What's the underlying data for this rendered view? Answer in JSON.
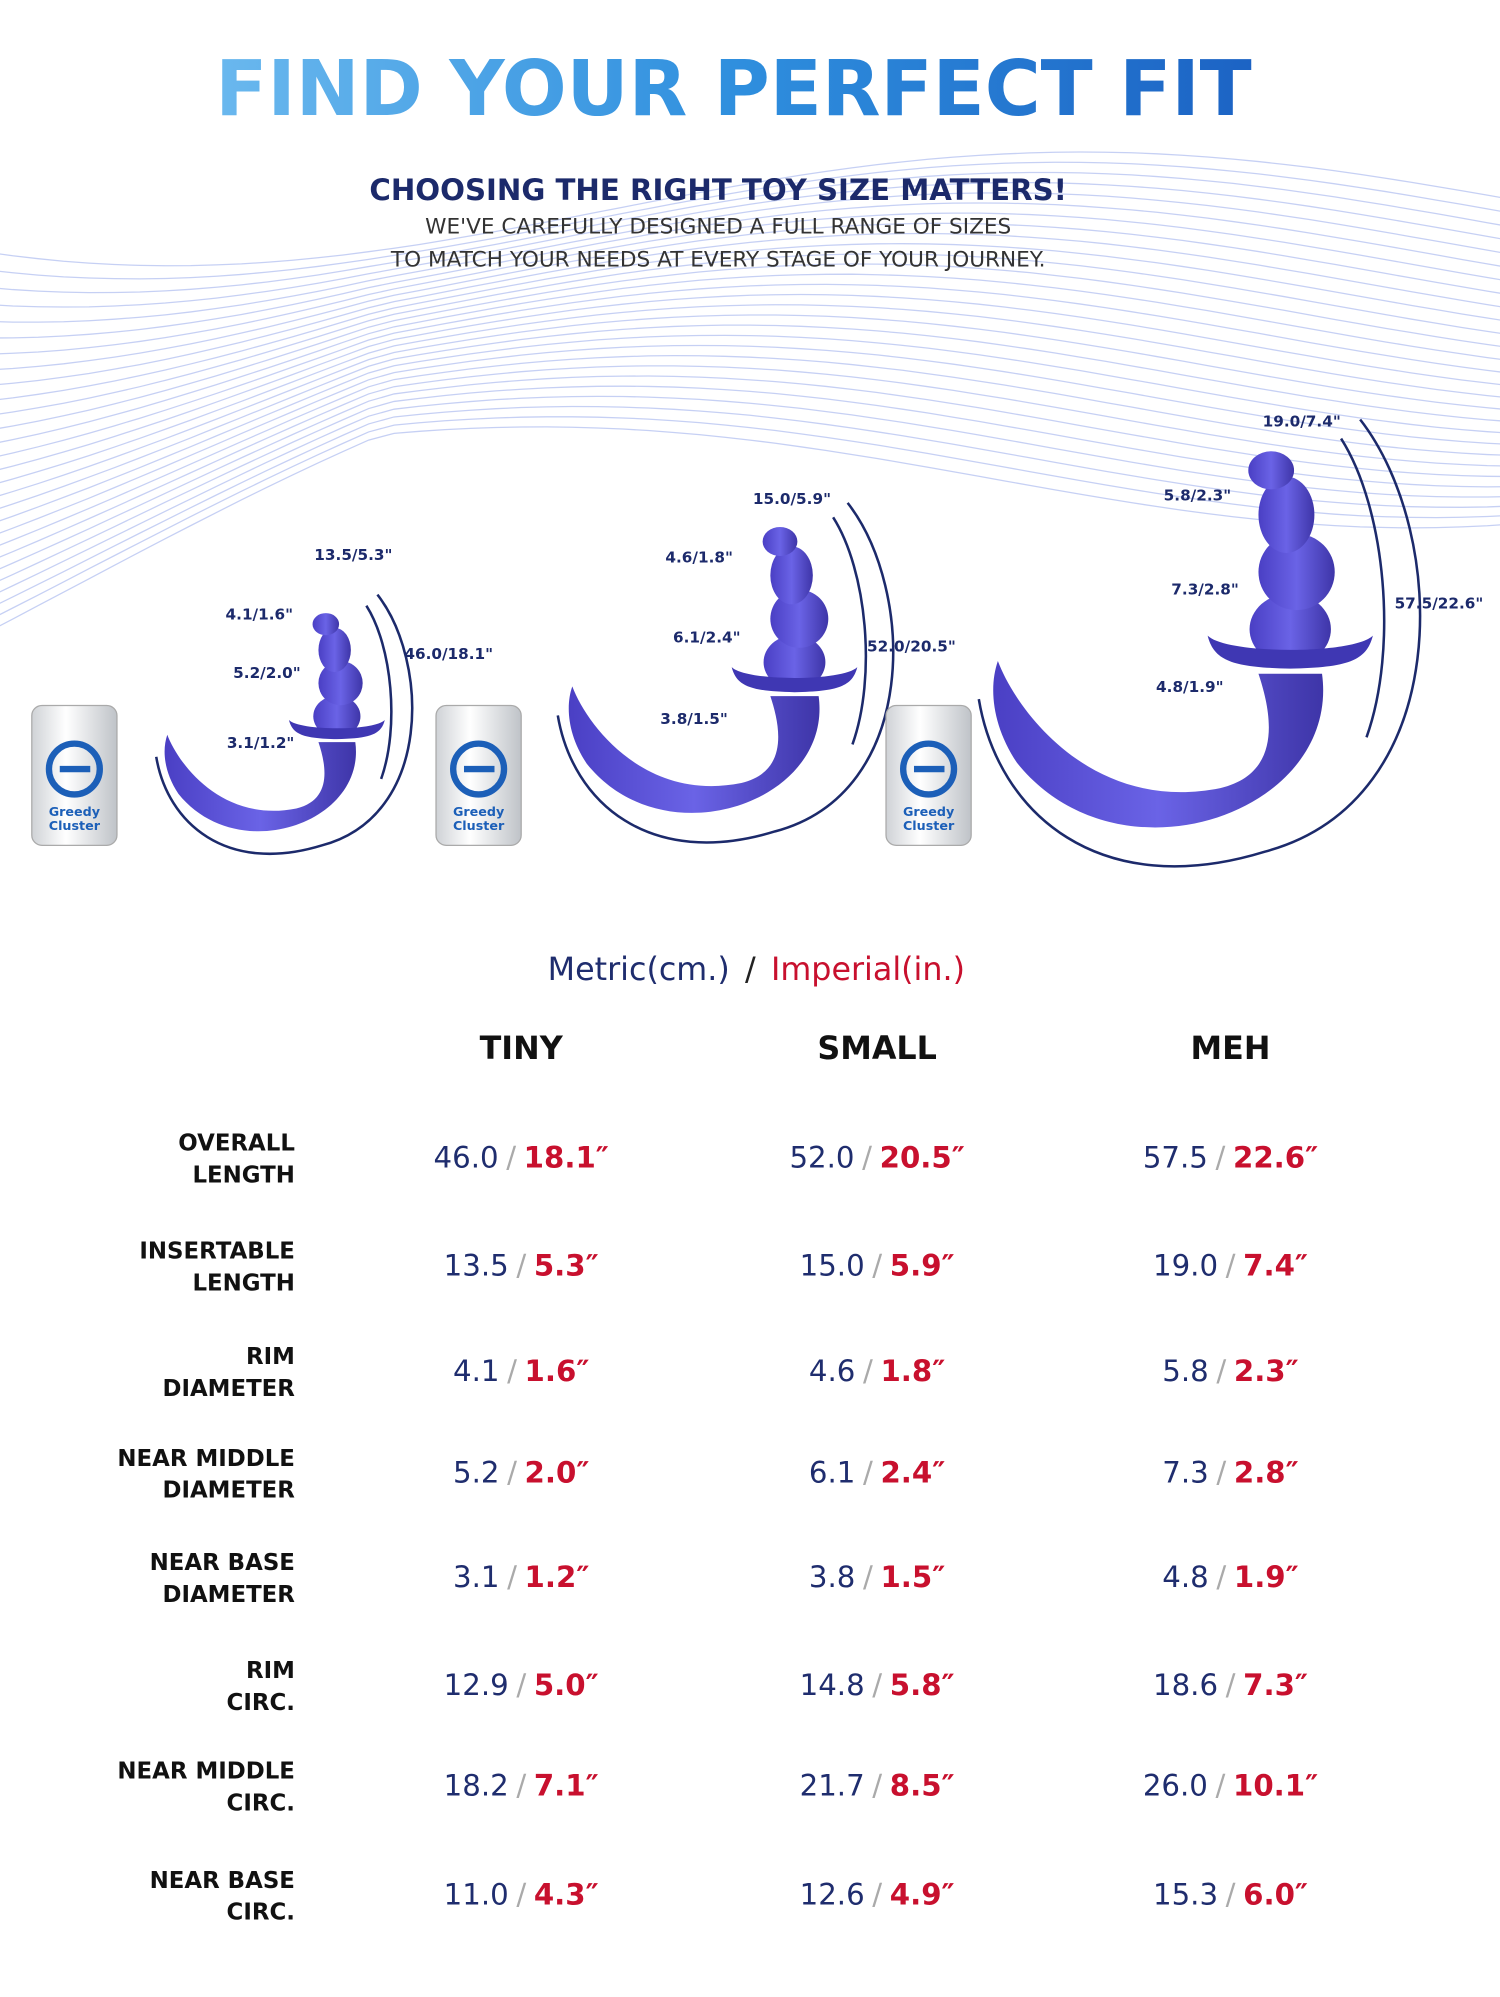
{
  "header": {
    "title": "FIND YOUR PERFECT FIT",
    "subtitle": "CHOOSING THE RIGHT TOY SIZE MATTERS!",
    "lines": [
      "WE'VE CAREFULLY DESIGNED A FULL RANGE OF SIZES",
      "TO MATCH YOUR NEEDS AT EVERY STAGE OF YOUR JOURNEY."
    ]
  },
  "products": [
    {
      "insertable": "13.5/5.3\"",
      "rim": "4.1/1.6\"",
      "middle": "5.2/2.0\"",
      "base": "3.1/1.2\"",
      "overall": "46.0/18.1\""
    },
    {
      "insertable": "15.0/5.9\"",
      "rim": "4.6/1.8\"",
      "middle": "6.1/2.4\"",
      "base": "3.8/1.5\"",
      "overall": "52.0/20.5\""
    },
    {
      "insertable": "19.0/7.4\"",
      "rim": "5.8/2.3\"",
      "middle": "7.3/2.8\"",
      "base": "4.8/1.9\"",
      "overall": "57.5/22.6\""
    }
  ],
  "can_label": [
    "Greedy",
    "Cluster"
  ],
  "table": {
    "legend": {
      "metric": "Metric(cm.)",
      "separator": "/",
      "imperial": "Imperial(in.)"
    },
    "columns": [
      "TINY",
      "SMALL",
      "MEH"
    ],
    "separator": "/",
    "rows": [
      {
        "label": [
          "OVERALL",
          "LENGTH"
        ],
        "cells": [
          [
            "46.0",
            "18.1″"
          ],
          [
            "52.0",
            "20.5″"
          ],
          [
            "57.5",
            "22.6″"
          ]
        ]
      },
      {
        "label": [
          "INSERTABLE",
          "LENGTH"
        ],
        "cells": [
          [
            "13.5",
            "5.3″"
          ],
          [
            "15.0",
            "5.9″"
          ],
          [
            "19.0",
            "7.4″"
          ]
        ]
      },
      {
        "label": [
          "RIM",
          "DIAMETER"
        ],
        "cells": [
          [
            "4.1",
            "1.6″"
          ],
          [
            "4.6",
            "1.8″"
          ],
          [
            "5.8",
            "2.3″"
          ]
        ]
      },
      {
        "label": [
          "NEAR MIDDLE",
          "DIAMETER"
        ],
        "cells": [
          [
            "5.2",
            "2.0″"
          ],
          [
            "6.1",
            "2.4″"
          ],
          [
            "7.3",
            "2.8″"
          ]
        ]
      },
      {
        "label": [
          "NEAR BASE",
          "DIAMETER"
        ],
        "cells": [
          [
            "3.1",
            "1.2″"
          ],
          [
            "3.8",
            "1.5″"
          ],
          [
            "4.8",
            "1.9″"
          ]
        ]
      },
      {
        "label": [
          "RIM",
          "CIRC."
        ],
        "cells": [
          [
            "12.9",
            "5.0″"
          ],
          [
            "14.8",
            "5.8″"
          ],
          [
            "18.6",
            "7.3″"
          ]
        ]
      },
      {
        "label": [
          "NEAR MIDDLE",
          "CIRC."
        ],
        "cells": [
          [
            "18.2",
            "7.1″"
          ],
          [
            "21.7",
            "8.5″"
          ],
          [
            "26.0",
            "10.1″"
          ]
        ]
      },
      {
        "label": [
          "NEAR BASE",
          "CIRC."
        ],
        "cells": [
          [
            "11.0",
            "4.3″"
          ],
          [
            "12.6",
            "4.9″"
          ],
          [
            "15.3",
            "6.0″"
          ]
        ]
      }
    ]
  }
}
